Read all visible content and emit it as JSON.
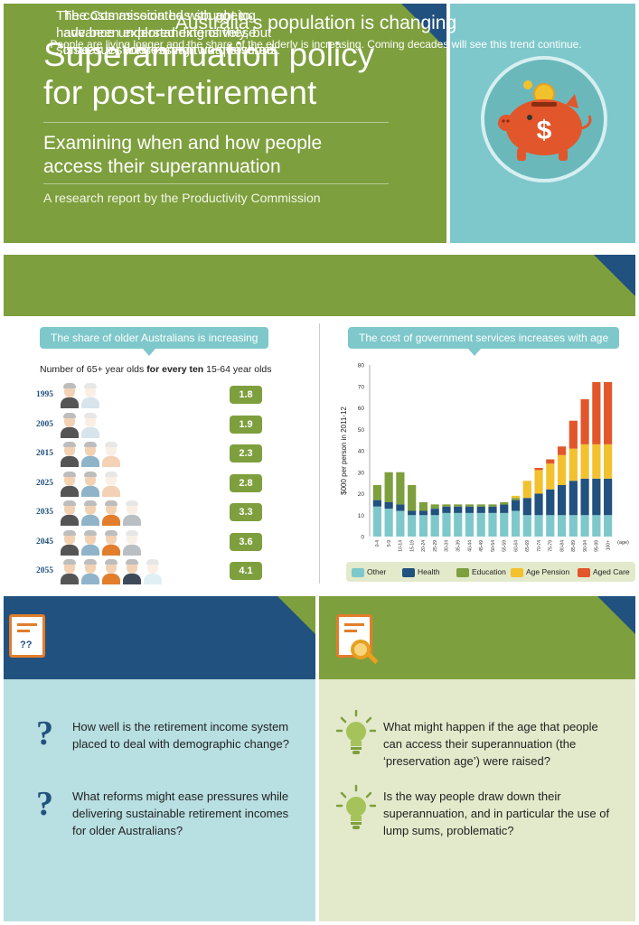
{
  "header": {
    "title_line1": "Superannuation policy",
    "title_line2": "for post-retirement",
    "subtitle_line1": "Examining when and how people",
    "subtitle_line2": "access their superannuation",
    "credit": "A research report by the Productivity Commission",
    "icon": "piggy-bank-dollar-icon",
    "colors": {
      "green": "#7e9f3d",
      "teal": "#7ec8cb",
      "navy": "#21517e",
      "orange": "#e27d2b"
    }
  },
  "population": {
    "title": "Australia’s population is changing",
    "description": "People are living longer and the share of the elderly is increasing. Coming decades will see this trend continue."
  },
  "older_share": {
    "pill": "The share of older Australians is increasing",
    "caption_pre": "Number of 65+ year olds ",
    "caption_bold": "for every ten",
    "caption_post": " 15-64 year olds",
    "rows": [
      {
        "year": "1995",
        "value": "1.8"
      },
      {
        "year": "2005",
        "value": "1.9"
      },
      {
        "year": "2015",
        "value": "2.3"
      },
      {
        "year": "2025",
        "value": "2.8"
      },
      {
        "year": "2035",
        "value": "3.3"
      },
      {
        "year": "2045",
        "value": "3.6"
      },
      {
        "year": "2055",
        "value": "4.1"
      }
    ]
  },
  "cost_chart": {
    "pill": "The cost of government services increases with age",
    "legend": [
      {
        "label": "Other",
        "color": "#7ec8cb",
        "icon": ""
      },
      {
        "label": "Health",
        "color": "#21517e",
        "icon": "medical-cross-icon"
      },
      {
        "label": "Education",
        "color": "#7e9f3d",
        "icon": "graduation-cap-icon"
      },
      {
        "label": "Age Pension",
        "color": "#f2c12e",
        "icon": "pensioner-icon"
      },
      {
        "label": "Aged Care",
        "color": "#e2562b",
        "icon": "aged-care-icon"
      }
    ]
  },
  "chart_data": {
    "type": "bar",
    "stacked": true,
    "ylabel": "$000 per person in 2011-12",
    "xlabel": "(age)",
    "ylim": [
      0,
      80
    ],
    "yticks": [
      0,
      10,
      20,
      30,
      40,
      50,
      60,
      70,
      80
    ],
    "categories": [
      "0-4",
      "5-9",
      "10-14",
      "15-19",
      "20-24",
      "25-29",
      "30-34",
      "35-39",
      "40-44",
      "45-49",
      "50-54",
      "55-59",
      "60-64",
      "65-69",
      "70-74",
      "75-79",
      "80-84",
      "85-89",
      "90-94",
      "95-99",
      "100+"
    ],
    "series": [
      {
        "name": "Other",
        "color": "#7ec8cb",
        "values": [
          14,
          13,
          12,
          10,
          10,
          10,
          11,
          11,
          11,
          11,
          11,
          11,
          12,
          10,
          10,
          10,
          10,
          10,
          10,
          10,
          10
        ]
      },
      {
        "name": "Health",
        "color": "#21517e",
        "values": [
          3,
          3,
          3,
          2,
          2,
          3,
          3,
          3,
          3,
          3,
          3,
          4,
          5,
          8,
          10,
          12,
          14,
          16,
          17,
          17,
          17
        ]
      },
      {
        "name": "Education",
        "color": "#7e9f3d",
        "values": [
          7,
          14,
          15,
          12,
          4,
          2,
          1,
          1,
          1,
          1,
          1,
          1,
          1,
          0,
          0,
          0,
          0,
          0,
          0,
          0,
          0
        ]
      },
      {
        "name": "Age Pension",
        "color": "#f2c12e",
        "values": [
          0,
          0,
          0,
          0,
          0,
          0,
          0,
          0,
          0,
          0,
          0,
          0,
          1,
          8,
          11,
          12,
          14,
          15,
          16,
          16,
          16
        ]
      },
      {
        "name": "Aged Care",
        "color": "#e2562b",
        "values": [
          0,
          0,
          0,
          0,
          0,
          0,
          0,
          0,
          0,
          0,
          0,
          0,
          0,
          0,
          1,
          2,
          4,
          13,
          21,
          29,
          29
        ]
      }
    ],
    "legend_position": "bottom",
    "grid": false
  },
  "costs_panel": {
    "heading": "The costs associated with ageing have been explored extensively, but some questions remain unanswered:",
    "icon": "clipboard-question-icon",
    "questions": [
      "How well is the retirement income system placed to deal with demographic change?",
      "What reforms might ease pressures while delivering sustainable retirement incomes for older Australians?"
    ]
  },
  "commission_panel": {
    "heading": "The Commission has sought to advance understanding of these issues by addressing two questions:",
    "icon": "clipboard-magnifier-icon",
    "questions": [
      "What might happen if the age that people can access their superannuation (the ‘preservation age’) were raised?",
      "Is the way people draw down their superannuation, and in particular the use of lump sums, problematic?"
    ]
  }
}
